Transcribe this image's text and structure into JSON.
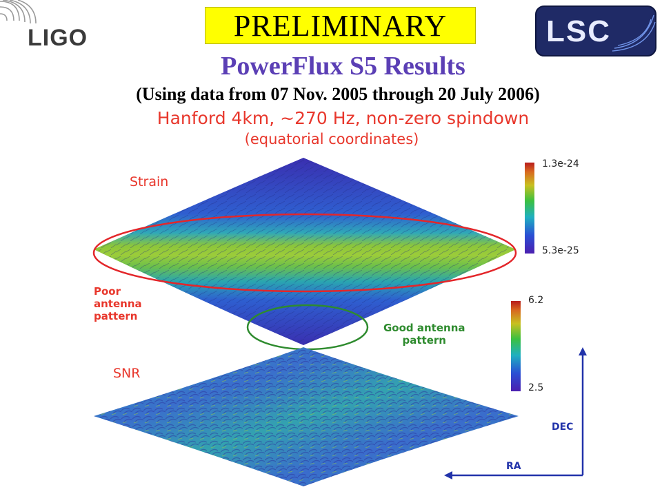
{
  "header": {
    "logo_left_text": "LIGO",
    "banner": "PRELIMINARY",
    "logo_right_text": "LSC"
  },
  "titles": {
    "main": "PowerFlux S5 Results",
    "sub": "(Using data from 07 Nov. 2005 through 20 July 2006)",
    "plot_line1": "Hanford 4km, ~270 Hz, non-zero spindown",
    "plot_line2": "(equatorial coordinates)"
  },
  "maps": {
    "strain": {
      "label": "Strain",
      "colorbar_max": "1.3e-24",
      "colorbar_min": "5.3e-25"
    },
    "snr": {
      "label": "SNR",
      "colorbar_max": "6.2",
      "colorbar_min": "2.5"
    }
  },
  "annotations": {
    "poor_line1": "Poor",
    "poor_line2": "antenna",
    "poor_line3": "pattern",
    "good_line1": "Good antenna",
    "good_line2": "pattern"
  },
  "axes": {
    "dec": "DEC",
    "ra": "RA"
  },
  "colors": {
    "banner_bg": "#ffff00",
    "title_purple": "#5b3fb5",
    "label_red": "#e8372c",
    "good_green": "#2e8b2e",
    "axis_blue": "#2233aa",
    "map_deep_blue": "#3a2fb0",
    "map_green": "#66c23a"
  }
}
